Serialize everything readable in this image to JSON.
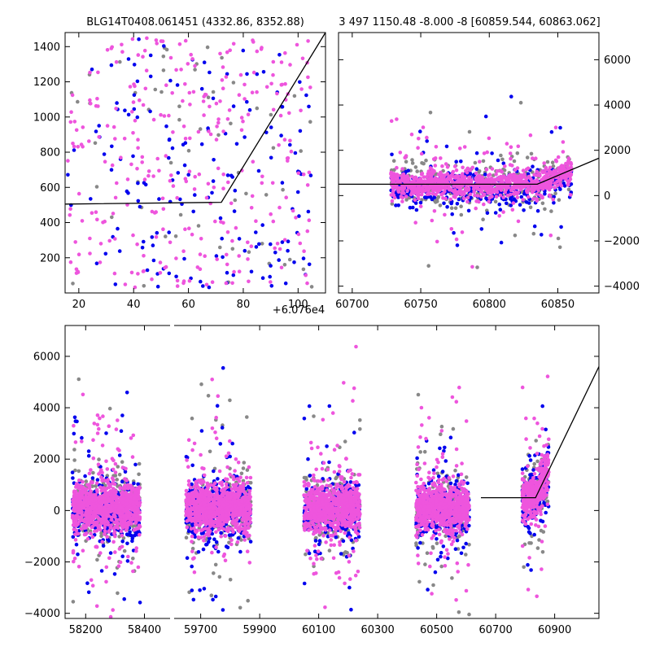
{
  "chart_data": [
    {
      "type": "scatter",
      "panel": "top-left",
      "title": "BLG14T0408.061451 (4332.86, 8352.88)",
      "xlim": [
        15,
        110
      ],
      "ylim": [
        0,
        1480
      ],
      "xticks": [
        "20",
        "40",
        "60",
        "80",
        "100"
      ],
      "yticks": [
        "200",
        "400",
        "600",
        "800",
        "1000",
        "1200",
        "1400"
      ],
      "xtick_values": [
        20,
        40,
        60,
        80,
        100
      ],
      "ytick_values": [
        200,
        400,
        600,
        800,
        1000,
        1200,
        1400
      ],
      "offset_label": "+6.076e4",
      "series_colors": [
        "#ee55dd",
        "#0000ee",
        "#888888"
      ],
      "point_counts": [
        300,
        160,
        60
      ],
      "model_line": {
        "x": [
          15,
          72,
          110
        ],
        "y": [
          505,
          515,
          1480
        ]
      }
    },
    {
      "type": "scatter",
      "panel": "top-right",
      "title": "3 497 1150.48 -8.000 -8 [60859.544, 60863.062]",
      "xlim": [
        60690,
        60880
      ],
      "ylim": [
        -4300,
        7200
      ],
      "xticks": [
        "60700",
        "60750",
        "60800",
        "60850"
      ],
      "yticks": [
        "−4000",
        "−2000",
        "0",
        "2000",
        "4000",
        "6000"
      ],
      "xtick_values": [
        60700,
        60750,
        60800,
        60850
      ],
      "ytick_values": [
        -4000,
        -2000,
        0,
        2000,
        4000,
        6000
      ],
      "series_colors": [
        "#ee55dd",
        "#0000ee",
        "#888888"
      ],
      "point_counts": [
        900,
        400,
        300
      ],
      "model_line": {
        "x": [
          60690,
          60835,
          60880
        ],
        "y": [
          500,
          500,
          1650
        ]
      }
    },
    {
      "type": "scatter",
      "panel": "bottom",
      "xticks": [
        "58200",
        "58400",
        "59700",
        "59900",
        "60100",
        "60300",
        "60500",
        "60700",
        "60900"
      ],
      "yticks": [
        "−4000",
        "−2000",
        "0",
        "2000",
        "4000",
        "6000"
      ],
      "ytick_values": [
        -4000,
        -2000,
        0,
        2000,
        4000,
        6000
      ],
      "ylim": [
        -4200,
        7200
      ],
      "segments": [
        {
          "xlim": [
            58130,
            58490
          ],
          "xtick_values": [
            58200,
            58400
          ],
          "seasons": [
            [
              58155,
              58385
            ]
          ]
        },
        {
          "xlim": [
            59610,
            61050
          ],
          "xtick_values": [
            59700,
            59900,
            60100,
            60300,
            60500,
            60700,
            60900
          ],
          "seasons": [
            [
              59650,
              59870
            ],
            [
              60050,
              60240
            ],
            [
              60430,
              60610
            ],
            [
              60790,
              60880
            ]
          ]
        }
      ],
      "series_colors": [
        "#ee55dd",
        "#0000ee",
        "#888888"
      ],
      "model_line": {
        "x": [
          60650,
          60835,
          61050
        ],
        "y": [
          500,
          500,
          5600
        ]
      }
    }
  ]
}
